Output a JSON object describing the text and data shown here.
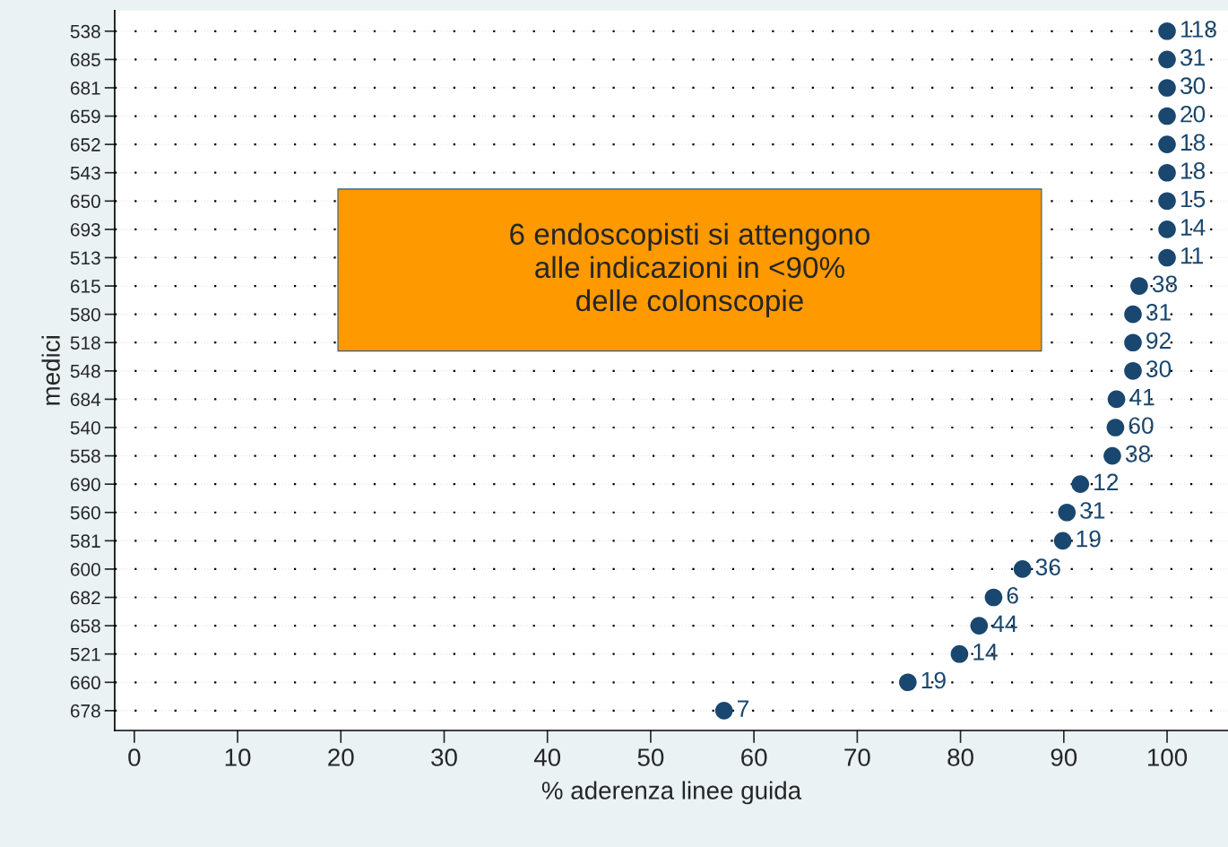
{
  "chart_data": {
    "type": "scatter",
    "orientation": "horizontal",
    "ylabel": "medici",
    "xlabel": "% aderenza linee guida",
    "categories": [
      "538",
      "685",
      "681",
      "659",
      "652",
      "543",
      "650",
      "693",
      "513",
      "615",
      "580",
      "518",
      "548",
      "684",
      "540",
      "558",
      "690",
      "560",
      "581",
      "600",
      "682",
      "658",
      "521",
      "660",
      "678"
    ],
    "values": [
      100,
      100,
      100,
      100,
      100,
      100,
      100,
      100,
      100,
      97.3,
      96.7,
      96.7,
      96.7,
      95.1,
      95.0,
      94.7,
      91.6,
      90.3,
      89.9,
      86.0,
      83.2,
      81.8,
      79.9,
      74.9,
      57.1
    ],
    "color": "#1a476f",
    "marker": "circle",
    "grid": "y",
    "line_style": "dotted",
    "legend": false,
    "xlim": [
      -1.9,
      105.9
    ],
    "xticks": [
      0,
      10,
      20,
      30,
      40,
      50,
      60,
      70,
      80,
      90,
      100
    ],
    "annotations": [
      "6 endoscopisti si attengono\nalle indicazioni in <90%\ndelle colonscopie",
      {
        "text": "118",
        "x": 100,
        "y": "538"
      },
      {
        "text": "31",
        "x": 100,
        "y": "685"
      },
      {
        "text": "30",
        "x": 100,
        "y": "681"
      },
      {
        "text": "20",
        "x": 100,
        "y": "659"
      },
      {
        "text": "18",
        "x": 100,
        "y": "652"
      },
      {
        "text": "18",
        "x": 100,
        "y": "543"
      },
      {
        "text": "15",
        "x": 100,
        "y": "650"
      },
      {
        "text": "14",
        "x": 100,
        "y": "693"
      },
      {
        "text": "11",
        "x": 100,
        "y": "513"
      },
      {
        "text": "38",
        "x": 97.3,
        "y": "615"
      },
      {
        "text": "31",
        "x": 96.7,
        "y": "580"
      },
      {
        "text": "92",
        "x": 96.7,
        "y": "518"
      },
      {
        "text": "30",
        "x": 96.7,
        "y": "548"
      },
      {
        "text": "41",
        "x": 95.1,
        "y": "684"
      },
      {
        "text": "60",
        "x": 95.0,
        "y": "540"
      },
      {
        "text": "38",
        "x": 94.7,
        "y": "558"
      },
      {
        "text": "12",
        "x": 91.6,
        "y": "690"
      },
      {
        "text": "31",
        "x": 90.3,
        "y": "560"
      },
      {
        "text": "19",
        "x": 89.9,
        "y": "581"
      },
      {
        "text": "36",
        "x": 86.0,
        "y": "600"
      },
      {
        "text": "6",
        "x": 83.2,
        "y": "682"
      },
      {
        "text": "44",
        "x": 81.8,
        "y": "658"
      },
      {
        "text": "14",
        "x": 79.9,
        "y": "521"
      },
      {
        "text": "19",
        "x": 74.9,
        "y": "660"
      },
      {
        "text": "7",
        "x": 57.1,
        "y": "678"
      }
    ]
  }
}
